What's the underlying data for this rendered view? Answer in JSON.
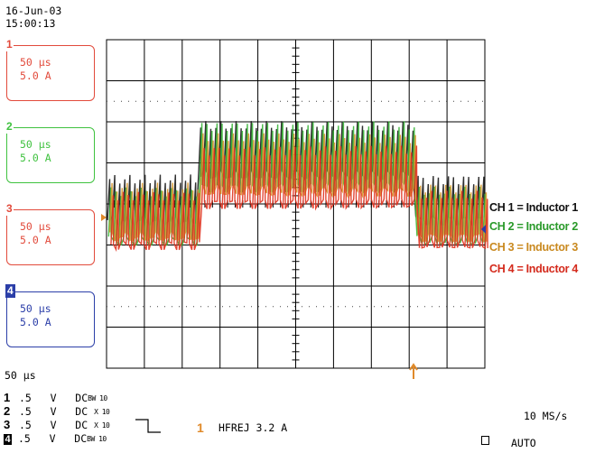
{
  "header": {
    "date": "16-Jun-03",
    "time": "15:00:13"
  },
  "channels": [
    {
      "num": "1",
      "timebase": "50 μs",
      "scale": "5.0 A",
      "color": "#e24a3b"
    },
    {
      "num": "2",
      "timebase": "50 μs",
      "scale": "5.0 A",
      "color": "#3fc23f"
    },
    {
      "num": "3",
      "timebase": "50 μs",
      "scale": "5.0 A",
      "color": "#e24a3b"
    },
    {
      "num": "4",
      "timebase": "50 μs",
      "scale": "5.0 A",
      "color": "#2b3ea8"
    }
  ],
  "legend": [
    {
      "label": "CH 1 = Inductor 1",
      "color": "#111111"
    },
    {
      "label": "CH 2 = Inductor 2",
      "color": "#2a9a2a"
    },
    {
      "label": "CH 3 = Inductor 3",
      "color": "#c9891f"
    },
    {
      "label": "CH 4 = Inductor 4",
      "color": "#d42a1c"
    }
  ],
  "footer": {
    "timebase": "50 μs",
    "settings": [
      {
        "num": "1",
        "volts": ".5",
        "unit": "V",
        "coupling": "DC",
        "limit": "BW 10"
      },
      {
        "num": "2",
        "volts": ".5",
        "unit": "V",
        "coupling": "DC",
        "limit": "X 10"
      },
      {
        "num": "3",
        "volts": ".5",
        "unit": "V",
        "coupling": "DC",
        "limit": "X 10"
      },
      {
        "num": "4",
        "volts": ".5",
        "unit": "V",
        "coupling": "DC",
        "limit": "BW 10"
      }
    ],
    "trigger_channel": "1",
    "trigger_text": "HFREJ 3.2 A",
    "sample_rate": "10 MS/s",
    "mode": "AUTO"
  },
  "chart_data": {
    "type": "line",
    "title": "",
    "xlabel": "",
    "ylabel": "",
    "grid": true,
    "divisions": {
      "x": 10,
      "y": 8
    },
    "time_per_div_us": 50,
    "amps_per_div": 5.0,
    "xlim_div": [
      0,
      10
    ],
    "ylim_div": [
      -4,
      4
    ],
    "step_on_div": 2.4,
    "step_off_div": 8.1,
    "series": [
      {
        "name": "CH 1 = Inductor 1",
        "color": "#1a1a1a",
        "low_level_div": [
          -0.4,
          0.6
        ],
        "high_level_div": [
          0.7,
          1.9
        ]
      },
      {
        "name": "CH 2 = Inductor 2",
        "color": "#39b539",
        "low_level_div": [
          -0.9,
          0.3
        ],
        "high_level_div": [
          0.4,
          1.9
        ]
      },
      {
        "name": "CH 3 = Inductor 3",
        "color": "#d7962a",
        "low_level_div": [
          -0.8,
          0.4
        ],
        "high_level_div": [
          0.3,
          1.6
        ]
      },
      {
        "name": "CH 4 = Inductor 4",
        "color": "#e0321f",
        "low_level_div": [
          -1.0,
          0.2
        ],
        "high_level_div": [
          0.0,
          1.3
        ]
      }
    ]
  }
}
